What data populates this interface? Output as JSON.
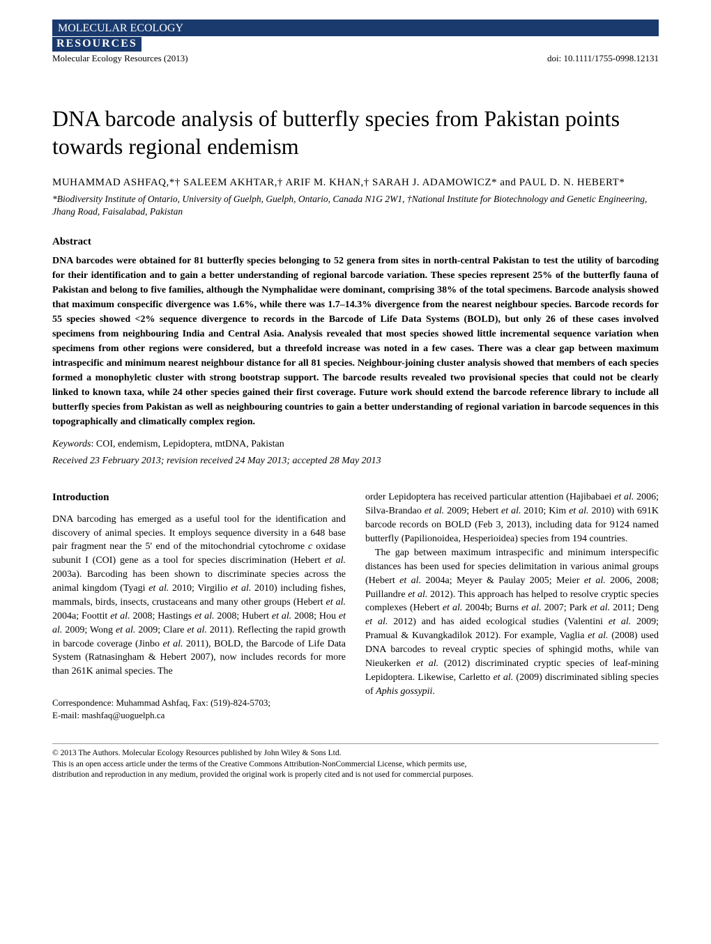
{
  "banner": {
    "main": "MOLECULAR ECOLOGY",
    "sub": "RESOURCES"
  },
  "meta": {
    "journal": "Molecular Ecology Resources (2013)",
    "doi": "doi: 10.1111/1755-0998.12131"
  },
  "title": "DNA barcode analysis of butterfly species from Pakistan points towards regional endemism",
  "authors": "MUHAMMAD ASHFAQ,*† SALEEM AKHTAR,† ARIF M. KHAN,† SARAH J. ADAMOWICZ* and PAUL D. N. HEBERT*",
  "affiliations": "*Biodiversity Institute of Ontario, University of Guelph, Guelph, Ontario, Canada N1G 2W1, †National Institute for Biotechnology and Genetic Engineering, Jhang Road, Faisalabad, Pakistan",
  "abstract_heading": "Abstract",
  "abstract_text": "DNA barcodes were obtained for 81 butterfly species belonging to 52 genera from sites in north-central Pakistan to test the utility of barcoding for their identification and to gain a better understanding of regional barcode variation. These species represent 25% of the butterfly fauna of Pakistan and belong to five families, although the Nymphalidae were dominant, comprising 38% of the total specimens. Barcode analysis showed that maximum conspecific divergence was 1.6%, while there was 1.7–14.3% divergence from the nearest neighbour species. Barcode records for 55 species showed <2% sequence divergence to records in the Barcode of Life Data Systems (BOLD), but only 26 of these cases involved specimens from neighbouring India and Central Asia. Analysis revealed that most species showed little incremental sequence variation when specimens from other regions were considered, but a threefold increase was noted in a few cases. There was a clear gap between maximum intraspecific and minimum nearest neighbour distance for all 81 species. Neighbour-joining cluster analysis showed that members of each species formed a monophyletic cluster with strong bootstrap support. The barcode results revealed two provisional species that could not be clearly linked to known taxa, while 24 other species gained their first coverage. Future work should extend the barcode reference library to include all butterfly species from Pakistan as well as neighbouring countries to gain a better understanding of regional variation in barcode sequences in this topographically and climatically complex region.",
  "keywords_label": "Keywords",
  "keywords": ":  COI, endemism, Lepidoptera, mtDNA, Pakistan",
  "dates": "Received 23 February 2013; revision received 24 May 2013; accepted 28 May 2013",
  "intro_heading": "Introduction",
  "col1_p1_a": "DNA barcoding has emerged as a useful tool for the identification and discovery of animal species. It employs sequence diversity in a 648 base pair fragment near the 5′ end of the mitochondrial cytochrome ",
  "col1_p1_b": "c",
  "col1_p1_c": " oxidase subunit I (COI) gene as a tool for species discrimination (Hebert ",
  "col1_p1_d": "et al.",
  "col1_p1_e": " 2003a). Barcoding has been shown to discriminate species across the animal kingdom (Tyagi ",
  "col1_p1_f": "et al.",
  "col1_p1_g": " 2010; Virgilio ",
  "col1_p1_h": "et al.",
  "col1_p1_i": " 2010) including fishes, mammals, birds, insects, crustaceans and many other groups (Hebert ",
  "col1_p1_j": "et al.",
  "col1_p1_k": " 2004a; Foottit ",
  "col1_p1_l": "et al.",
  "col1_p1_m": " 2008; Hastings ",
  "col1_p1_n": "et al.",
  "col1_p1_o": " 2008; Hubert ",
  "col1_p1_p": "et al.",
  "col1_p1_q": " 2008; Hou ",
  "col1_p1_r": "et al.",
  "col1_p1_s": " 2009; Wong ",
  "col1_p1_t": "et al.",
  "col1_p1_u": " 2009; Clare ",
  "col1_p1_v": "et al.",
  "col1_p1_w": " 2011). Reflecting the rapid growth in barcode coverage (Jinbo ",
  "col1_p1_x": "et al.",
  "col1_p1_y": " 2011), BOLD, the Barcode of Life Data System (Ratnasingham & Hebert 2007), now includes records for more than 261K animal species. The",
  "correspondence_line1": "Correspondence: Muhammad Ashfaq, Fax: (519)-824-5703;",
  "correspondence_line2": "E-mail: mashfaq@uoguelph.ca",
  "col2_p1_a": "order Lepidoptera has received particular attention (Hajibabaei ",
  "col2_p1_b": "et al.",
  "col2_p1_c": " 2006; Silva-Brandao ",
  "col2_p1_d": "et al.",
  "col2_p1_e": " 2009; Hebert ",
  "col2_p1_f": "et al.",
  "col2_p1_g": " 2010; Kim ",
  "col2_p1_h": "et al.",
  "col2_p1_i": " 2010) with 691K barcode records on BOLD (Feb 3, 2013), including data for 9124 named butterfly (Papilionoidea, Hesperioidea) species from 194 countries.",
  "col2_p2_a": "The gap between maximum intraspecific and minimum interspecific distances has been used for species delimitation in various animal groups (Hebert ",
  "col2_p2_b": "et al.",
  "col2_p2_c": " 2004a; Meyer & Paulay 2005; Meier ",
  "col2_p2_d": "et al.",
  "col2_p2_e": " 2006, 2008; Puillandre ",
  "col2_p2_f": "et al.",
  "col2_p2_g": " 2012). This approach has helped to resolve cryptic species complexes (Hebert ",
  "col2_p2_h": "et al.",
  "col2_p2_i": " 2004b; Burns ",
  "col2_p2_j": "et al.",
  "col2_p2_k": " 2007; Park ",
  "col2_p2_l": "et al.",
  "col2_p2_m": " 2011; Deng ",
  "col2_p2_n": "et al.",
  "col2_p2_o": " 2012) and has aided ecological studies (Valentini ",
  "col2_p2_p": "et al.",
  "col2_p2_q": " 2009; Pramual & Kuvangkadilok 2012). For example, Vaglia ",
  "col2_p2_r": "et al.",
  "col2_p2_s": " (2008) used DNA barcodes to reveal cryptic species of sphingid moths, while van Nieukerken ",
  "col2_p2_t": "et al.",
  "col2_p2_u": " (2012) discriminated cryptic species of leaf-mining Lepidoptera. Likewise, Carletto ",
  "col2_p2_v": "et al.",
  "col2_p2_w": " (2009) discriminated sibling species of ",
  "col2_p2_x": "Aphis gossypii",
  "col2_p2_y": ".",
  "footer_line1": "© 2013 The Authors. Molecular Ecology Resources  published by John Wiley & Sons Ltd.",
  "footer_line2": "This is an open access article under the terms of the Creative Commons Attribution-NonCommercial License, which permits use,",
  "footer_line3": "distribution and reproduction in any medium, provided the original work is properly cited and is not used for commercial purposes."
}
